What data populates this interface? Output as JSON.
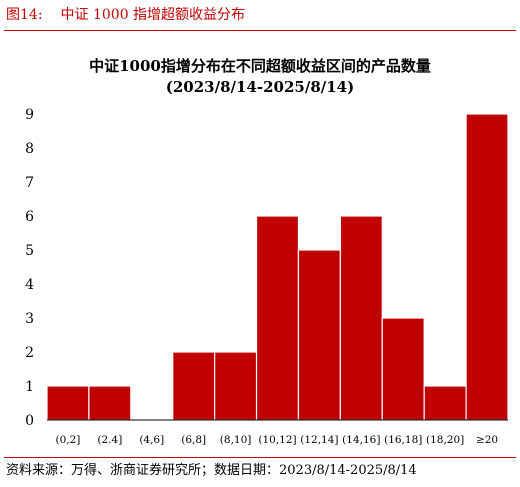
{
  "figure": {
    "number": "图14:",
    "caption": "中证 1000 指增超额收益分布"
  },
  "source": "资料来源：万得、浙商证券研究所；数据日期：2023/8/14-2025/8/14",
  "colors": {
    "accent": "#c00000",
    "bar": "#c00000"
  },
  "chart_data": {
    "type": "bar",
    "title": "中证1000指增分布在不同超额收益区间的产品数量",
    "subtitle": "(2023/8/14-2025/8/14)",
    "xlabel": "",
    "ylabel": "",
    "categories": [
      "(0,2]",
      "(2.4]",
      "(4,6]",
      "(6,8]",
      "(8,10]",
      "(10,12]",
      "(12,14]",
      "(14,16]",
      "(16,18]",
      "(18,20]",
      "≥20"
    ],
    "values": [
      1,
      1,
      0,
      2,
      2,
      6,
      5,
      6,
      3,
      1,
      9
    ],
    "ylim": [
      0,
      9
    ],
    "yticks": [
      "0",
      "1",
      "2",
      "3",
      "4",
      "5",
      "6",
      "7",
      "8",
      "9"
    ],
    "grid": false,
    "legend": "none"
  }
}
